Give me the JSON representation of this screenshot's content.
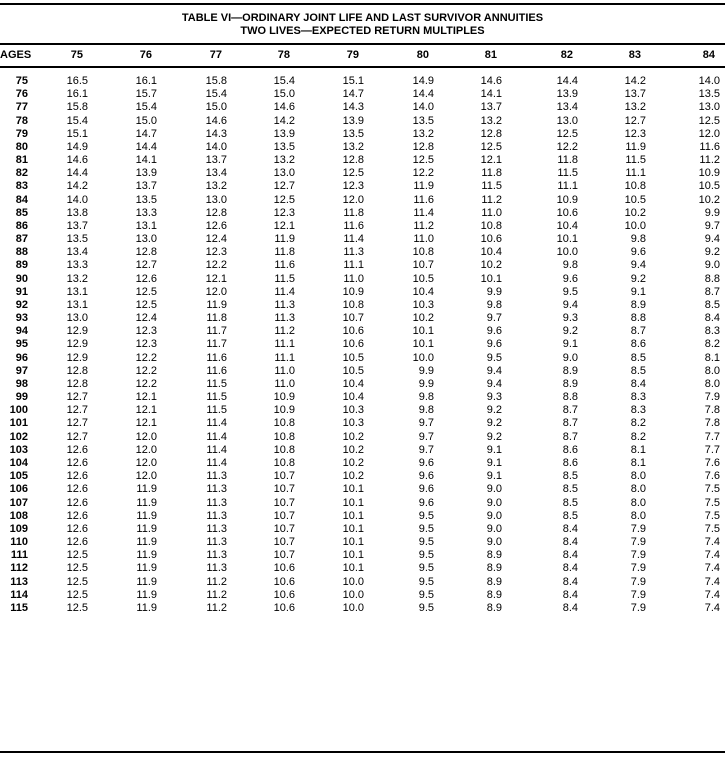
{
  "title": {
    "line1": "TABLE VI—ORDINARY JOINT LIFE AND LAST SURVIVOR ANNUITIES",
    "line2": "TWO LIVES—EXPECTED RETURN MULTIPLES"
  },
  "table": {
    "headers": [
      "AGES",
      "75",
      "76",
      "77",
      "78",
      "79",
      "80",
      "81",
      "82",
      "83",
      "84"
    ],
    "rows": [
      [
        "75",
        "16.5",
        "16.1",
        "15.8",
        "15.4",
        "15.1",
        "14.9",
        "14.6",
        "14.4",
        "14.2",
        "14.0"
      ],
      [
        "76",
        "16.1",
        "15.7",
        "15.4",
        "15.0",
        "14.7",
        "14.4",
        "14.1",
        "13.9",
        "13.7",
        "13.5"
      ],
      [
        "77",
        "15.8",
        "15.4",
        "15.0",
        "14.6",
        "14.3",
        "14.0",
        "13.7",
        "13.4",
        "13.2",
        "13.0"
      ],
      [
        "78",
        "15.4",
        "15.0",
        "14.6",
        "14.2",
        "13.9",
        "13.5",
        "13.2",
        "13.0",
        "12.7",
        "12.5"
      ],
      [
        "79",
        "15.1",
        "14.7",
        "14.3",
        "13.9",
        "13.5",
        "13.2",
        "12.8",
        "12.5",
        "12.3",
        "12.0"
      ],
      [
        "80",
        "14.9",
        "14.4",
        "14.0",
        "13.5",
        "13.2",
        "12.8",
        "12.5",
        "12.2",
        "11.9",
        "11.6"
      ],
      [
        "81",
        "14.6",
        "14.1",
        "13.7",
        "13.2",
        "12.8",
        "12.5",
        "12.1",
        "11.8",
        "11.5",
        "11.2"
      ],
      [
        "82",
        "14.4",
        "13.9",
        "13.4",
        "13.0",
        "12.5",
        "12.2",
        "11.8",
        "11.5",
        "11.1",
        "10.9"
      ],
      [
        "83",
        "14.2",
        "13.7",
        "13.2",
        "12.7",
        "12.3",
        "11.9",
        "11.5",
        "11.1",
        "10.8",
        "10.5"
      ],
      [
        "84",
        "14.0",
        "13.5",
        "13.0",
        "12.5",
        "12.0",
        "11.6",
        "11.2",
        "10.9",
        "10.5",
        "10.2"
      ],
      [
        "85",
        "13.8",
        "13.3",
        "12.8",
        "12.3",
        "11.8",
        "11.4",
        "11.0",
        "10.6",
        "10.2",
        "9.9"
      ],
      [
        "86",
        "13.7",
        "13.1",
        "12.6",
        "12.1",
        "11.6",
        "11.2",
        "10.8",
        "10.4",
        "10.0",
        "9.7"
      ],
      [
        "87",
        "13.5",
        "13.0",
        "12.4",
        "11.9",
        "11.4",
        "11.0",
        "10.6",
        "10.1",
        "9.8",
        "9.4"
      ],
      [
        "88",
        "13.4",
        "12.8",
        "12.3",
        "11.8",
        "11.3",
        "10.8",
        "10.4",
        "10.0",
        "9.6",
        "9.2"
      ],
      [
        "89",
        "13.3",
        "12.7",
        "12.2",
        "11.6",
        "11.1",
        "10.7",
        "10.2",
        "9.8",
        "9.4",
        "9.0"
      ],
      [
        "90",
        "13.2",
        "12.6",
        "12.1",
        "11.5",
        "11.0",
        "10.5",
        "10.1",
        "9.6",
        "9.2",
        "8.8"
      ],
      [
        "91",
        "13.1",
        "12.5",
        "12.0",
        "11.4",
        "10.9",
        "10.4",
        "9.9",
        "9.5",
        "9.1",
        "8.7"
      ],
      [
        "92",
        "13.1",
        "12.5",
        "11.9",
        "11.3",
        "10.8",
        "10.3",
        "9.8",
        "9.4",
        "8.9",
        "8.5"
      ],
      [
        "93",
        "13.0",
        "12.4",
        "11.8",
        "11.3",
        "10.7",
        "10.2",
        "9.7",
        "9.3",
        "8.8",
        "8.4"
      ],
      [
        "94",
        "12.9",
        "12.3",
        "11.7",
        "11.2",
        "10.6",
        "10.1",
        "9.6",
        "9.2",
        "8.7",
        "8.3"
      ],
      [
        "95",
        "12.9",
        "12.3",
        "11.7",
        "11.1",
        "10.6",
        "10.1",
        "9.6",
        "9.1",
        "8.6",
        "8.2"
      ],
      [
        "96",
        "12.9",
        "12.2",
        "11.6",
        "11.1",
        "10.5",
        "10.0",
        "9.5",
        "9.0",
        "8.5",
        "8.1"
      ],
      [
        "97",
        "12.8",
        "12.2",
        "11.6",
        "11.0",
        "10.5",
        "9.9",
        "9.4",
        "8.9",
        "8.5",
        "8.0"
      ],
      [
        "98",
        "12.8",
        "12.2",
        "11.5",
        "11.0",
        "10.4",
        "9.9",
        "9.4",
        "8.9",
        "8.4",
        "8.0"
      ],
      [
        "99",
        "12.7",
        "12.1",
        "11.5",
        "10.9",
        "10.4",
        "9.8",
        "9.3",
        "8.8",
        "8.3",
        "7.9"
      ],
      [
        "100",
        "12.7",
        "12.1",
        "11.5",
        "10.9",
        "10.3",
        "9.8",
        "9.2",
        "8.7",
        "8.3",
        "7.8"
      ],
      [
        "101",
        "12.7",
        "12.1",
        "11.4",
        "10.8",
        "10.3",
        "9.7",
        "9.2",
        "8.7",
        "8.2",
        "7.8"
      ],
      [
        "102",
        "12.7",
        "12.0",
        "11.4",
        "10.8",
        "10.2",
        "9.7",
        "9.2",
        "8.7",
        "8.2",
        "7.7"
      ],
      [
        "103",
        "12.6",
        "12.0",
        "11.4",
        "10.8",
        "10.2",
        "9.7",
        "9.1",
        "8.6",
        "8.1",
        "7.7"
      ],
      [
        "104",
        "12.6",
        "12.0",
        "11.4",
        "10.8",
        "10.2",
        "9.6",
        "9.1",
        "8.6",
        "8.1",
        "7.6"
      ],
      [
        "105",
        "12.6",
        "12.0",
        "11.3",
        "10.7",
        "10.2",
        "9.6",
        "9.1",
        "8.5",
        "8.0",
        "7.6"
      ],
      [
        "106",
        "12.6",
        "11.9",
        "11.3",
        "10.7",
        "10.1",
        "9.6",
        "9.0",
        "8.5",
        "8.0",
        "7.5"
      ],
      [
        "107",
        "12.6",
        "11.9",
        "11.3",
        "10.7",
        "10.1",
        "9.6",
        "9.0",
        "8.5",
        "8.0",
        "7.5"
      ],
      [
        "108",
        "12.6",
        "11.9",
        "11.3",
        "10.7",
        "10.1",
        "9.5",
        "9.0",
        "8.5",
        "8.0",
        "7.5"
      ],
      [
        "109",
        "12.6",
        "11.9",
        "11.3",
        "10.7",
        "10.1",
        "9.5",
        "9.0",
        "8.4",
        "7.9",
        "7.5"
      ],
      [
        "110",
        "12.6",
        "11.9",
        "11.3",
        "10.7",
        "10.1",
        "9.5",
        "9.0",
        "8.4",
        "7.9",
        "7.4"
      ],
      [
        "111",
        "12.5",
        "11.9",
        "11.3",
        "10.7",
        "10.1",
        "9.5",
        "8.9",
        "8.4",
        "7.9",
        "7.4"
      ],
      [
        "112",
        "12.5",
        "11.9",
        "11.3",
        "10.6",
        "10.1",
        "9.5",
        "8.9",
        "8.4",
        "7.9",
        "7.4"
      ],
      [
        "113",
        "12.5",
        "11.9",
        "11.2",
        "10.6",
        "10.0",
        "9.5",
        "8.9",
        "8.4",
        "7.9",
        "7.4"
      ],
      [
        "114",
        "12.5",
        "11.9",
        "11.2",
        "10.6",
        "10.0",
        "9.5",
        "8.9",
        "8.4",
        "7.9",
        "7.4"
      ],
      [
        "115",
        "12.5",
        "11.9",
        "11.2",
        "10.6",
        "10.0",
        "9.5",
        "8.9",
        "8.4",
        "7.9",
        "7.4"
      ]
    ]
  }
}
